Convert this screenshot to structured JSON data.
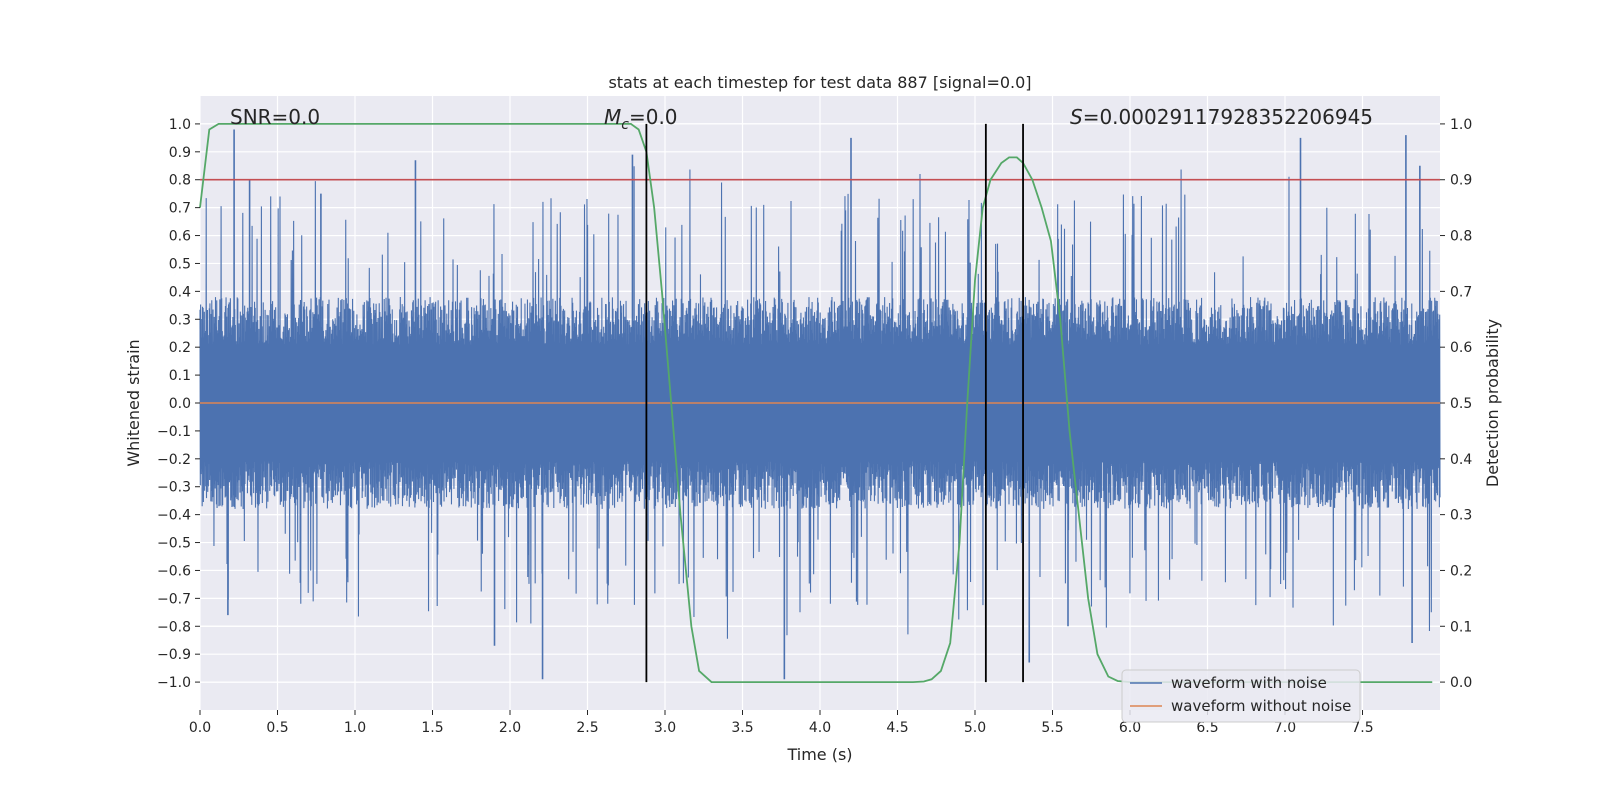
{
  "chart_data": {
    "type": "line",
    "title": "stats at each timestep for test data 887 [signal=0.0]",
    "xlabel": "Time (s)",
    "ylabel": "Whitened strain",
    "y2label": "Detection probability",
    "xlim": [
      0.0,
      8.0
    ],
    "ylim": [
      -1.1,
      1.1
    ],
    "y2lim": [
      -0.05,
      1.05
    ],
    "xticks": [
      0.0,
      0.5,
      1.0,
      1.5,
      2.0,
      2.5,
      3.0,
      3.5,
      4.0,
      4.5,
      5.0,
      5.5,
      6.0,
      6.5,
      7.0,
      7.5
    ],
    "yticks": [
      -1.0,
      -0.9,
      -0.8,
      -0.7,
      -0.6,
      -0.5,
      -0.4,
      -0.3,
      -0.2,
      -0.1,
      0.0,
      0.1,
      0.2,
      0.3,
      0.4,
      0.5,
      0.6,
      0.7,
      0.8,
      0.9,
      1.0
    ],
    "y2ticks": [
      0.0,
      0.1,
      0.2,
      0.3,
      0.4,
      0.5,
      0.6,
      0.7,
      0.8,
      0.9,
      1.0
    ],
    "annotations": {
      "snr": "SNR=0.0",
      "mc_symbol": "M",
      "mc_sub": "c",
      "mc_value": "=0.0",
      "s_symbol": "S",
      "s_value": "=0.0002911792835220694​5"
    },
    "threshold": {
      "y2": 0.9,
      "color": "#c44e52"
    },
    "vlines_x": [
      2.88,
      5.07,
      5.31
    ],
    "series": [
      {
        "name": "waveform with noise",
        "color": "#4c72b0",
        "description_seed": 887,
        "noise_core_amplitude": 0.38,
        "noise_peak_amplitude": 1.0,
        "spikes": [
          {
            "x": 0.22,
            "y": 0.98
          },
          {
            "x": 0.32,
            "y": 0.8
          },
          {
            "x": 0.78,
            "y": 0.75
          },
          {
            "x": 1.39,
            "y": 0.87
          },
          {
            "x": 2.79,
            "y": 0.89
          },
          {
            "x": 4.2,
            "y": 0.95
          },
          {
            "x": 7.1,
            "y": 0.95
          },
          {
            "x": 7.78,
            "y": 0.96
          },
          {
            "x": 7.87,
            "y": 0.85
          },
          {
            "x": 0.18,
            "y": -0.76
          },
          {
            "x": 2.21,
            "y": -0.99
          },
          {
            "x": 3.77,
            "y": -0.99
          },
          {
            "x": 5.35,
            "y": -0.93
          },
          {
            "x": 7.82,
            "y": -0.86
          },
          {
            "x": 1.9,
            "y": -0.87
          },
          {
            "x": 5.6,
            "y": -0.8
          }
        ]
      },
      {
        "name": "waveform without noise",
        "color": "#dd8452",
        "values_const": 0.0
      },
      {
        "name": "detection probability",
        "color": "#55a868",
        "axis": "y2",
        "x": [
          0.0,
          0.03,
          0.06,
          0.12,
          0.2,
          0.5,
          1.0,
          1.5,
          2.0,
          2.5,
          2.7,
          2.78,
          2.83,
          2.88,
          2.93,
          2.98,
          3.04,
          3.1,
          3.17,
          3.22,
          3.3,
          3.5,
          4.0,
          4.5,
          4.6,
          4.67,
          4.72,
          4.78,
          4.84,
          4.9,
          4.95,
          5.0,
          5.05,
          5.1,
          5.17,
          5.22,
          5.27,
          5.31,
          5.37,
          5.43,
          5.49,
          5.55,
          5.61,
          5.67,
          5.73,
          5.79,
          5.86,
          5.92,
          6.0,
          6.5,
          7.0,
          7.5,
          7.95
        ],
        "y": [
          0.85,
          0.92,
          0.99,
          1.0,
          1.0,
          1.0,
          1.0,
          1.0,
          1.0,
          1.0,
          1.0,
          1.0,
          0.99,
          0.95,
          0.85,
          0.7,
          0.5,
          0.3,
          0.1,
          0.02,
          0.0,
          0.0,
          0.0,
          0.0,
          0.0,
          0.001,
          0.005,
          0.02,
          0.07,
          0.25,
          0.5,
          0.72,
          0.85,
          0.9,
          0.93,
          0.94,
          0.94,
          0.93,
          0.9,
          0.85,
          0.79,
          0.65,
          0.45,
          0.3,
          0.15,
          0.05,
          0.01,
          0.002,
          0.0,
          0.0,
          0.0,
          0.0,
          0.0
        ]
      }
    ],
    "legend": {
      "position": "bottom-right",
      "entries": [
        "waveform with noise",
        "waveform without noise"
      ]
    },
    "colors": {
      "plot_bg": "#eaeaf2",
      "grid": "#ffffff",
      "vline": "#000000"
    }
  }
}
